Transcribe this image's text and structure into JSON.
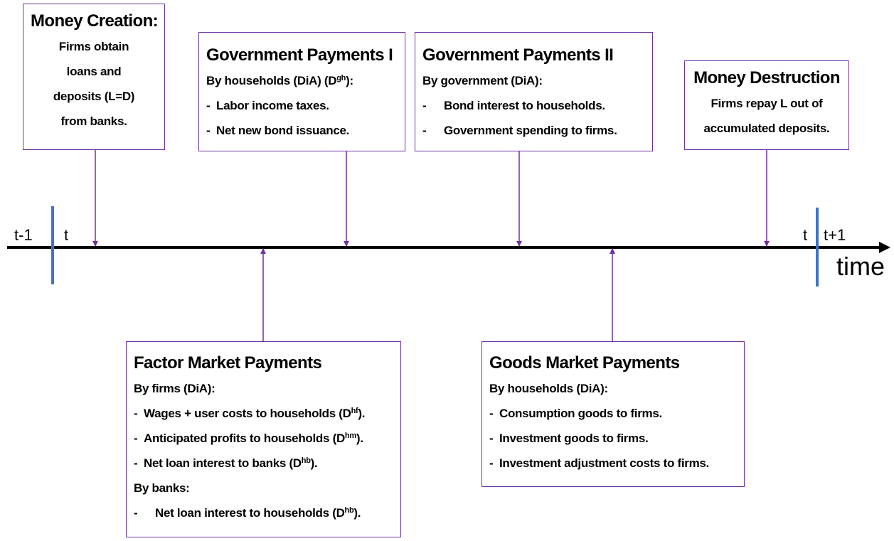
{
  "timeline": {
    "labels": [
      "t-1",
      "t",
      "t",
      "t+1"
    ],
    "axis_label": "time"
  },
  "boxes": [
    {
      "title": "Money Creation:",
      "lines": [
        {
          "text": "Firms obtain"
        },
        {
          "text": "loans and"
        },
        {
          "text": "deposits (L=D)"
        },
        {
          "text": "from banks."
        }
      ]
    },
    {
      "title": "Government Payments I",
      "lines": [
        {
          "text": "By households (DiA) (D",
          "sup": "gh",
          "after": "):"
        },
        {
          "bullet": "-",
          "text": "Labor income taxes."
        },
        {
          "bullet": "-",
          "text": "Net new bond issuance."
        }
      ]
    },
    {
      "title": "Government Payments II",
      "lines": [
        {
          "text": "By government (DiA):"
        },
        {
          "bullet": "-",
          "text": "Bond interest to households."
        },
        {
          "bullet": "-",
          "text": "Government spending to firms."
        }
      ]
    },
    {
      "title": "Money Destruction",
      "lines": [
        {
          "text": "Firms repay L out of"
        },
        {
          "text": "accumulated deposits."
        }
      ]
    },
    {
      "title": "Factor Market Payments",
      "lines": [
        {
          "text": "By firms (DiA):"
        },
        {
          "bullet": "-",
          "text": "Wages + user costs to households (D",
          "sup": "hf",
          "after": ")."
        },
        {
          "bullet": "-",
          "text": "Anticipated profits to households (D",
          "sup": "hm",
          "after": ")."
        },
        {
          "bullet": "-",
          "text": "Net loan interest to banks (D",
          "sup": "hb",
          "after": ")."
        },
        {
          "text": "By banks:"
        },
        {
          "bullet": "-",
          "text": "Net loan interest to households (D",
          "sup": "hb",
          "after": ")."
        }
      ]
    },
    {
      "title": "Goods Market Payments",
      "lines": [
        {
          "text": "By households (DiA):"
        },
        {
          "bullet": "-",
          "text": "Consumption goods to firms."
        },
        {
          "bullet": "-",
          "text": "Investment goods to firms."
        },
        {
          "bullet": "-",
          "text": "Investment adjustment costs to firms."
        }
      ]
    }
  ]
}
